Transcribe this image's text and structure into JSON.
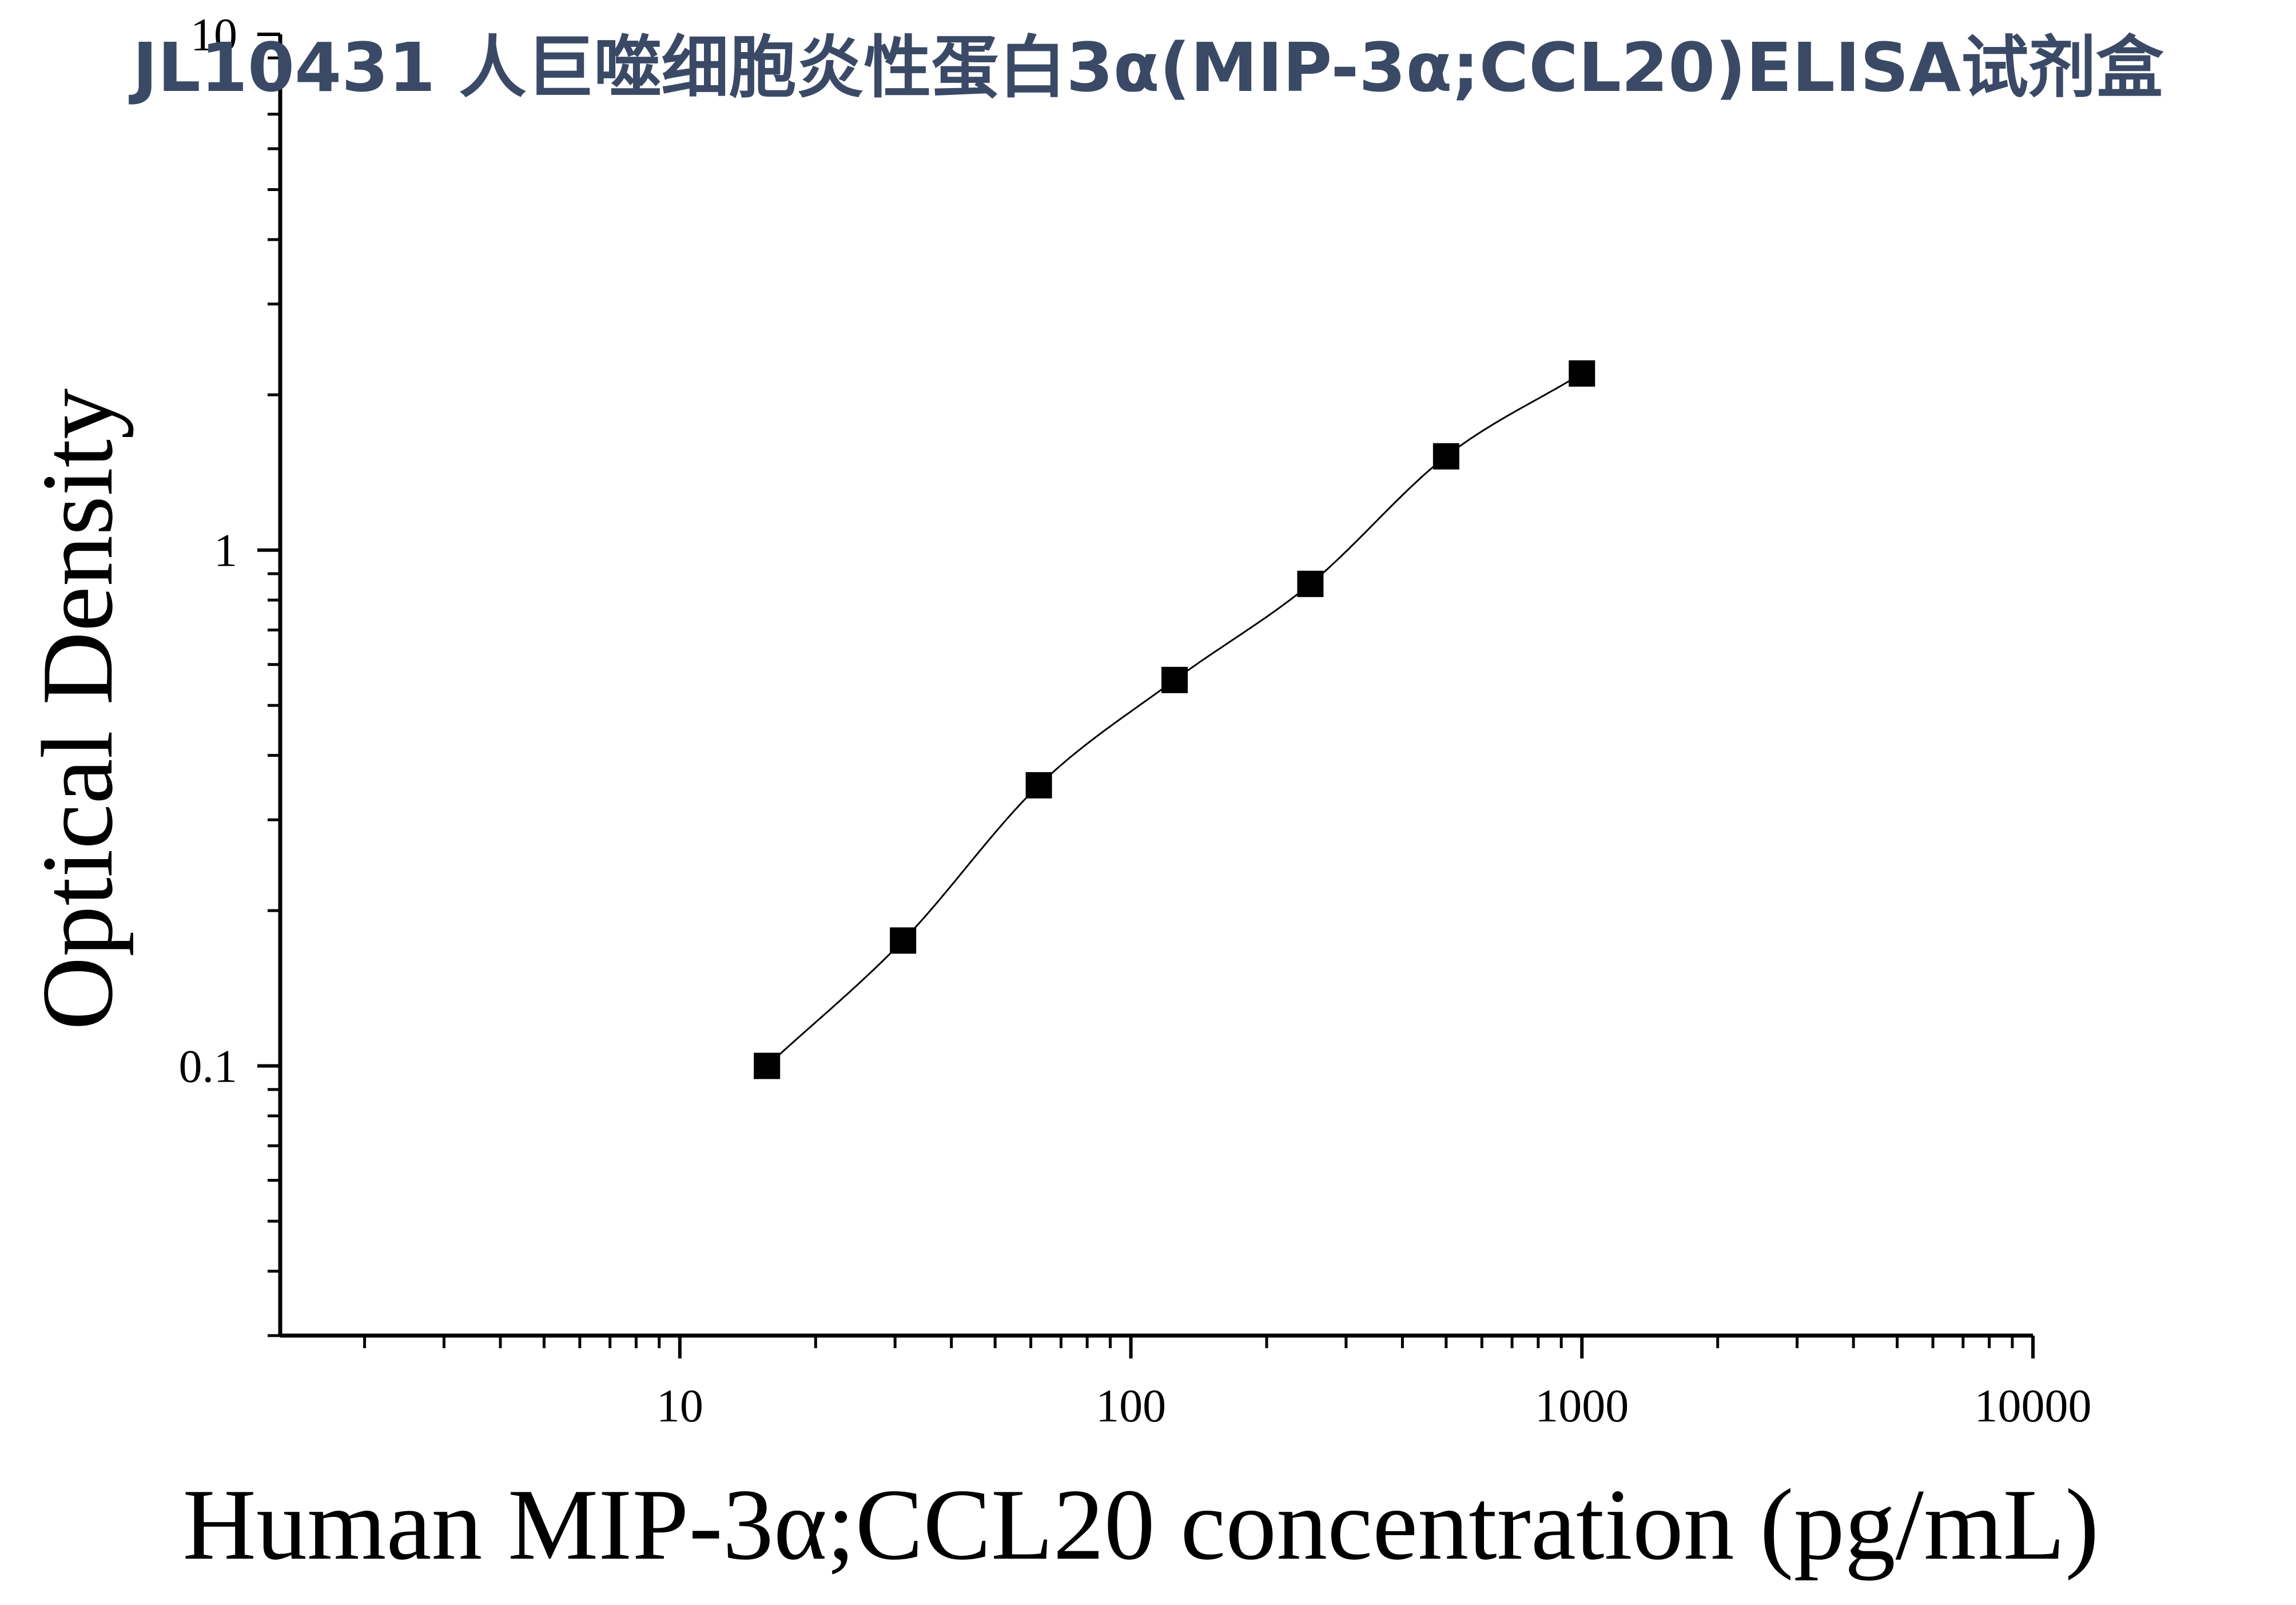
{
  "page_title": "JL10431 人巨噬细胞炎性蛋白3α(MIP-3α;CCL20)ELISA试剂盒",
  "chart_data": {
    "type": "scatter",
    "title": "",
    "xlabel": "Human MIP-3α;CCL20 concentration (pg/mL)",
    "ylabel": "Optical Density",
    "x_scale": "log",
    "y_scale": "log",
    "xlim": [
      1.3,
      10000
    ],
    "ylim": [
      0.03,
      10
    ],
    "x_ticks": [
      10,
      100,
      1000,
      10000
    ],
    "x_tick_labels": [
      "10",
      "100",
      "1000",
      "10000"
    ],
    "y_ticks": [
      0.1,
      1,
      10
    ],
    "y_tick_labels": [
      "0.1",
      "1",
      "10"
    ],
    "grid": false,
    "series": [
      {
        "x": [
          15.6,
          31.25,
          62.5,
          125,
          250,
          500,
          1000
        ],
        "y": [
          0.1,
          0.175,
          0.35,
          0.56,
          0.86,
          1.52,
          2.2
        ],
        "marker": "square",
        "color": "#000000"
      }
    ],
    "fit_curve": {
      "x": [
        15.6,
        1000
      ],
      "color": "#000000"
    }
  }
}
